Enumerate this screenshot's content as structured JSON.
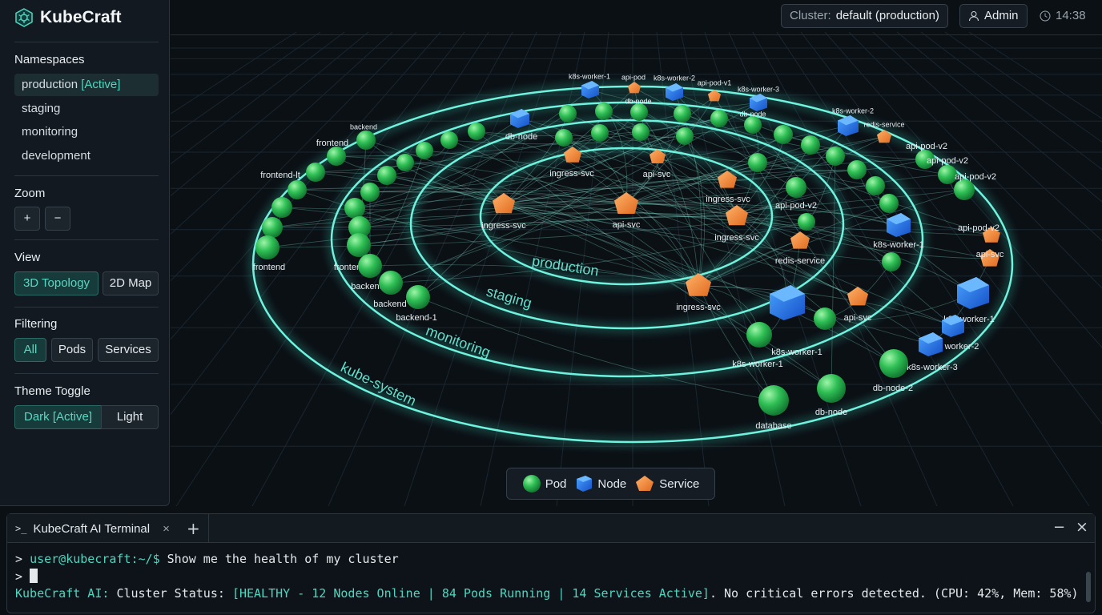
{
  "app": {
    "title": "KubeCraft"
  },
  "topbar": {
    "cluster_label": "Cluster:",
    "cluster_value": "default (production)",
    "user": "Admin",
    "time": "14:38"
  },
  "sidebar": {
    "namespaces": {
      "title": "Namespaces",
      "items": [
        {
          "name": "production",
          "badge": "[Active]"
        },
        {
          "name": "staging"
        },
        {
          "name": "monitoring"
        },
        {
          "name": "development"
        }
      ]
    },
    "zoom": {
      "title": "Zoom",
      "buttons": [
        "+",
        "−"
      ]
    },
    "view": {
      "title": "View",
      "options": [
        "3D Topology",
        "2D Map"
      ]
    },
    "filtering": {
      "title": "Filtering",
      "options": [
        "All",
        "Pods",
        "Services"
      ]
    },
    "theme": {
      "title": "Theme Toggle",
      "options": [
        "Dark [Active]",
        "Light"
      ]
    }
  },
  "topology": {
    "rings": [
      "production",
      "staging",
      "monitoring",
      "kube-system"
    ],
    "nodes": [
      "k8s-worker-1",
      "api-pod",
      "db-node",
      "k8s-worker-2",
      "api-pod-v1",
      "k8s-worker-3",
      "db-node",
      "k8s-worker-2",
      "redis-service",
      "api-pod-v2",
      "api-pod-v2",
      "api-pod-v2",
      "api-pod-v2",
      "api-svc",
      "db-node",
      "backend",
      "frontend",
      "frontend-lt",
      "frontend",
      "ingress-svc",
      "api-svc",
      "ingress-svc",
      "ingress-svc",
      "api-svc",
      "ingress-svc",
      "ingress-svc",
      "api-pod-v2",
      "redis-service",
      "k8s-worker-1",
      "api-svc",
      "k8s-worker-1",
      "worker-2",
      "k8s-worker-3",
      "db-node-2",
      "k8s-worker-1",
      "k8s-worker-1",
      "database",
      "db-node",
      "frontend",
      "backend",
      "backend",
      "backend-1"
    ],
    "legend": [
      "Pod",
      "Node",
      "Service"
    ]
  },
  "terminal": {
    "tab": "KubeCraft AI Terminal",
    "lines": [
      {
        "prompt": ">",
        "user": "user@kubecraft:~/$",
        "command": "Show me the health of my cluster"
      },
      {
        "prompt": ">"
      },
      {
        "speaker": "KubeCraft AI:",
        "text": "Cluster Status:",
        "status": "[HEALTHY - 12 Nodes Online | 84 Pods Running | 14 Services Active]",
        "detail": ". No critical errors detected. (CPU: 42%, Mem: 58%)"
      }
    ]
  }
}
